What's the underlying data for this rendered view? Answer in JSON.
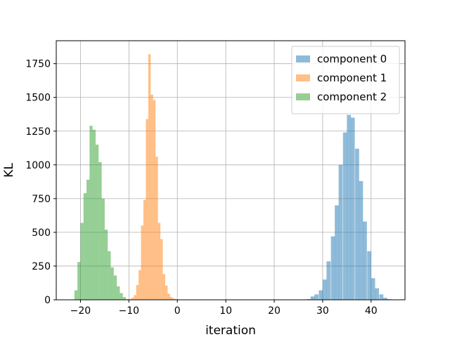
{
  "chart_data": {
    "type": "bar",
    "subtype": "histogram",
    "title": "",
    "xlabel": "iteration",
    "ylabel": "KL",
    "xlim": [
      -25,
      47
    ],
    "ylim": [
      0,
      1920
    ],
    "xticks": [
      -20,
      -10,
      0,
      10,
      20,
      30,
      40
    ],
    "yticks": [
      0,
      250,
      500,
      750,
      1000,
      1250,
      1500,
      1750
    ],
    "grid": true,
    "legend_position": "top-right",
    "series": [
      {
        "name": "component 0",
        "color": "#1f77b4",
        "bin_width": 0.83,
        "bins_start": [
          26.7,
          27.5,
          28.3,
          29.2,
          30.0,
          30.8,
          31.7,
          32.5,
          33.3,
          34.2,
          35.0,
          35.8,
          36.7,
          37.5,
          38.3,
          39.2,
          40.0,
          40.8,
          41.7,
          42.5,
          43.3,
          44.2
        ],
        "values": [
          5,
          25,
          40,
          70,
          150,
          285,
          470,
          700,
          1000,
          1240,
          1370,
          1350,
          1120,
          880,
          580,
          360,
          160,
          85,
          40,
          15,
          5,
          2
        ]
      },
      {
        "name": "component 1",
        "color": "#ff7f0e",
        "bin_width": 0.5,
        "bins_start": [
          -10.0,
          -9.5,
          -9.0,
          -8.5,
          -8.0,
          -7.5,
          -7.0,
          -6.5,
          -6.0,
          -5.5,
          -5.0,
          -4.5,
          -4.0,
          -3.5,
          -3.0,
          -2.5,
          -2.0,
          -1.5,
          -1.0,
          -0.5,
          0.0
        ],
        "values": [
          5,
          15,
          35,
          110,
          220,
          550,
          740,
          1340,
          1820,
          1520,
          1480,
          1060,
          570,
          450,
          190,
          105,
          45,
          20,
          10,
          5,
          2
        ]
      },
      {
        "name": "component 2",
        "color": "#2ca02c",
        "bin_width": 0.625,
        "bins_start": [
          -21.25,
          -20.625,
          -20.0,
          -19.375,
          -18.75,
          -18.125,
          -17.5,
          -16.875,
          -16.25,
          -15.625,
          -15.0,
          -14.375,
          -13.75,
          -13.125,
          -12.5,
          -11.875,
          -11.25,
          -10.625
        ],
        "values": [
          70,
          280,
          570,
          790,
          890,
          1290,
          1260,
          1150,
          1020,
          750,
          520,
          360,
          240,
          180,
          100,
          50,
          20,
          5
        ]
      }
    ]
  }
}
